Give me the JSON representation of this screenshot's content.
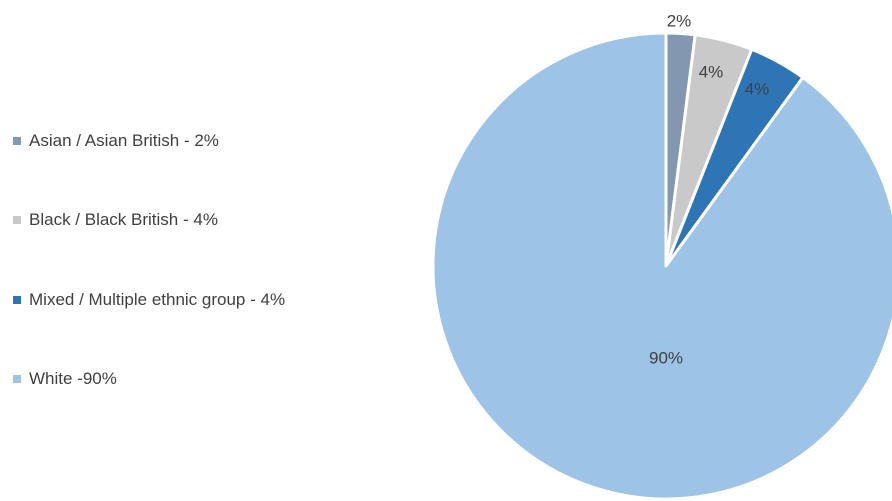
{
  "chart_data": {
    "type": "pie",
    "title": "",
    "categories": [
      "Asian / Asian British",
      "Black / Black British",
      "Mixed / Multiple ethnic group",
      "White"
    ],
    "values": [
      2,
      4,
      4,
      90
    ],
    "value_unit": "%",
    "data_labels": [
      "2%",
      "4%",
      "4%",
      "90%"
    ],
    "legend_labels": [
      "Asian / Asian British - 2%",
      "Black / Black British - 4%",
      "Mixed / Multiple ethnic group - 4%",
      "White -90%"
    ],
    "colors": [
      "#8497b0",
      "#c9c9c9",
      "#2e75b6",
      "#9dc3e6"
    ],
    "slice_border_color": "#ffffff",
    "legend_position": "left",
    "start_angle": "12 o'clock",
    "direction": "clockwise"
  }
}
